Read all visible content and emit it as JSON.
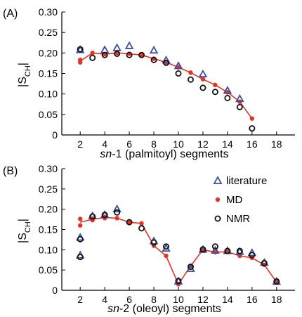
{
  "chart_data": [
    {
      "panel_label": "(A)",
      "type": "scatter",
      "ylabel": "|S",
      "ylabel_sub": "CH",
      "ylabel_end": "|",
      "xlabel_italic": "sn",
      "xlabel_rest": "-1 (palmitoyl) segments",
      "xlim": [
        0.5,
        19.5
      ],
      "ylim": [
        0,
        0.3
      ],
      "xticks": [
        2,
        4,
        6,
        8,
        10,
        12,
        14,
        16,
        18
      ],
      "yticks": [
        0,
        0.05,
        0.1,
        0.15,
        0.2,
        0.25,
        0.3
      ],
      "ytick_labels": [
        "0",
        "0.05",
        "0.10",
        "0.15",
        "0.20",
        "0.25",
        "0.30"
      ],
      "series": [
        {
          "name": "literature",
          "marker": "triangle",
          "color": "#3a4fa0",
          "points": [
            [
              2,
              0.207
            ],
            [
              4,
              0.207
            ],
            [
              5,
              0.212
            ],
            [
              6,
              0.217
            ],
            [
              8,
              0.206
            ],
            [
              9,
              0.182
            ],
            [
              10,
              0.168
            ],
            [
              12,
              0.148
            ],
            [
              14,
              0.108
            ],
            [
              15,
              0.088
            ]
          ]
        },
        {
          "name": "MD",
          "marker": "dot-line",
          "color": "#e53225",
          "points": [
            [
              2,
              0.177
            ],
            [
              2,
              0.183
            ],
            [
              3,
              0.2
            ],
            [
              4,
              0.197
            ],
            [
              5,
              0.2
            ],
            [
              6,
              0.198
            ],
            [
              7,
              0.195
            ],
            [
              8,
              0.186
            ],
            [
              9,
              0.177
            ],
            [
              10,
              0.165
            ],
            [
              11,
              0.152
            ],
            [
              12,
              0.136
            ],
            [
              13,
              0.122
            ],
            [
              14,
              0.104
            ],
            [
              15,
              0.081
            ],
            [
              16,
              0.04
            ]
          ]
        },
        {
          "name": "NMR",
          "marker": "circle",
          "color": "#111111",
          "points": [
            [
              2,
              0.209
            ],
            [
              3,
              0.188
            ],
            [
              4,
              0.195
            ],
            [
              5,
              0.198
            ],
            [
              6,
              0.195
            ],
            [
              7,
              0.195
            ],
            [
              8,
              0.183
            ],
            [
              9,
              0.176
            ],
            [
              10,
              0.15
            ],
            [
              11,
              0.135
            ],
            [
              12,
              0.115
            ],
            [
              13,
              0.105
            ],
            [
              14,
              0.09
            ],
            [
              15,
              0.068
            ],
            [
              16,
              0.016
            ]
          ]
        }
      ]
    },
    {
      "panel_label": "(B)",
      "type": "scatter",
      "ylabel": "|S",
      "ylabel_sub": "CH",
      "ylabel_end": "|",
      "xlabel_italic": "sn",
      "xlabel_rest": "-2 (oleoyl) segments",
      "xlim": [
        0.5,
        19.5
      ],
      "ylim": [
        0,
        0.3
      ],
      "xticks": [
        2,
        4,
        6,
        8,
        10,
        12,
        14,
        16,
        18
      ],
      "yticks": [
        0,
        0.05,
        0.1,
        0.15,
        0.2,
        0.25,
        0.3
      ],
      "ytick_labels": [
        "0",
        "0.05",
        "0.10",
        "0.15",
        "0.20",
        "0.25",
        "0.30"
      ],
      "legend": [
        "literature",
        "MD",
        "NMR"
      ],
      "legend_position": "top-right",
      "series": [
        {
          "name": "literature",
          "marker": "triangle",
          "color": "#3a4fa0",
          "points": [
            [
              2,
              0.13
            ],
            [
              2,
              0.086
            ],
            [
              3,
              0.183
            ],
            [
              4,
              0.186
            ],
            [
              5,
              0.2
            ],
            [
              8,
              0.121
            ],
            [
              9,
              0.103
            ],
            [
              10,
              0.022
            ],
            [
              11,
              0.053
            ],
            [
              12,
              0.1
            ],
            [
              13,
              0.098
            ],
            [
              14,
              0.097
            ],
            [
              15,
              0.095
            ],
            [
              16,
              0.092
            ],
            [
              17,
              0.068
            ],
            [
              18,
              0.021
            ]
          ]
        },
        {
          "name": "MD",
          "marker": "dot-line",
          "color": "#e53225",
          "points": [
            [
              2,
              0.176
            ],
            [
              2,
              0.16
            ],
            [
              3,
              0.173
            ],
            [
              3,
              0.177
            ],
            [
              4,
              0.178
            ],
            [
              4,
              0.181
            ],
            [
              5,
              0.178
            ],
            [
              6,
              0.168
            ],
            [
              7,
              0.165
            ],
            [
              8,
              0.11
            ],
            [
              9,
              0.085
            ],
            [
              10,
              0.015
            ],
            [
              11,
              0.06
            ],
            [
              12,
              0.1
            ],
            [
              13,
              0.094
            ],
            [
              14,
              0.095
            ],
            [
              15,
              0.085
            ],
            [
              16,
              0.08
            ],
            [
              17,
              0.063
            ],
            [
              18,
              0.02
            ]
          ]
        },
        {
          "name": "NMR",
          "marker": "circle",
          "color": "#111111",
          "points": [
            [
              2,
              0.126
            ],
            [
              2,
              0.082
            ],
            [
              3,
              0.182
            ],
            [
              4,
              0.186
            ],
            [
              5,
              0.192
            ],
            [
              6,
              0.168
            ],
            [
              7,
              0.153
            ],
            [
              8,
              0.118
            ],
            [
              9,
              0.108
            ],
            [
              10,
              0.023
            ],
            [
              11,
              0.058
            ],
            [
              12,
              0.101
            ],
            [
              13,
              0.108
            ],
            [
              14,
              0.097
            ],
            [
              15,
              0.097
            ],
            [
              16,
              0.087
            ],
            [
              17,
              0.067
            ],
            [
              18,
              0.022
            ]
          ]
        }
      ]
    }
  ]
}
